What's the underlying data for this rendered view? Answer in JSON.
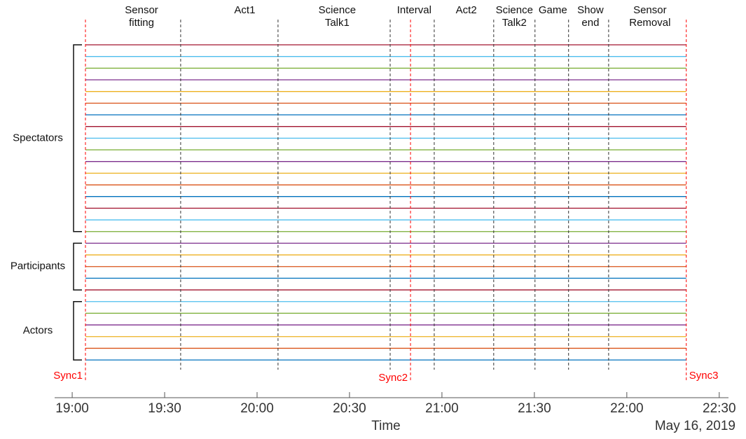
{
  "chart_data": {
    "type": "timeline",
    "x_label": "Time",
    "date_label": "May 16, 2019",
    "xlim": [
      1134.3,
      1353
    ],
    "xticks": [
      {
        "value": 1140,
        "label": "19:00"
      },
      {
        "value": 1170,
        "label": "19:30"
      },
      {
        "value": 1200,
        "label": "20:00"
      },
      {
        "value": 1230,
        "label": "20:30"
      },
      {
        "value": 1260,
        "label": "21:00"
      },
      {
        "value": 1290,
        "label": "21:30"
      },
      {
        "value": 1320,
        "label": "22:00"
      },
      {
        "value": 1350,
        "label": "22:30"
      }
    ],
    "phases": [
      {
        "lines": [
          "Sensor",
          "fitting"
        ],
        "center": 1162.5
      },
      {
        "lines": [
          "Act1"
        ],
        "center": 1196
      },
      {
        "lines": [
          "Science",
          "Talk1"
        ],
        "center": 1226
      },
      {
        "lines": [
          "Interval"
        ],
        "center": 1251
      },
      {
        "lines": [
          "Act2"
        ],
        "center": 1267.9
      },
      {
        "lines": [
          "Science",
          "Talk2"
        ],
        "center": 1283.5
      },
      {
        "lines": [
          "Game"
        ],
        "center": 1296
      },
      {
        "lines": [
          "Show",
          "end"
        ],
        "center": 1308.2
      },
      {
        "lines": [
          "Sensor",
          "Removal"
        ],
        "center": 1327.5
      }
    ],
    "boundaries": [
      1175.2,
      1206.8,
      1243.2,
      1257.5,
      1276.8,
      1290.2,
      1301.1,
      1314.1
    ],
    "boundary_color": "#333333",
    "syncs": [
      {
        "label": "Sync1",
        "time": 1144.3
      },
      {
        "label": "Sync2",
        "time": 1249.8
      },
      {
        "label": "Sync3",
        "time": 1339.3
      }
    ],
    "sync_color": "#ff0000",
    "groups": [
      {
        "name": "Spectators",
        "first": 0,
        "last": 16
      },
      {
        "name": "Participants",
        "first": 17,
        "last": 21
      },
      {
        "name": "Actors",
        "first": 22,
        "last": 27
      }
    ],
    "trace_colors": [
      "#a2142f",
      "#4dbeee",
      "#77ac30",
      "#7e2f8e",
      "#edb120",
      "#d95319",
      "#0072bd",
      "#a2142f",
      "#4dbeee",
      "#77ac30",
      "#7e2f8e",
      "#edb120",
      "#d95319",
      "#0072bd",
      "#a2142f",
      "#4dbeee",
      "#77ac30",
      "#7e2f8e",
      "#edb120",
      "#d95319",
      "#0072bd",
      "#a2142f",
      "#4dbeee",
      "#77ac30",
      "#7e2f8e",
      "#edb120",
      "#d95319",
      "#0072bd"
    ]
  }
}
